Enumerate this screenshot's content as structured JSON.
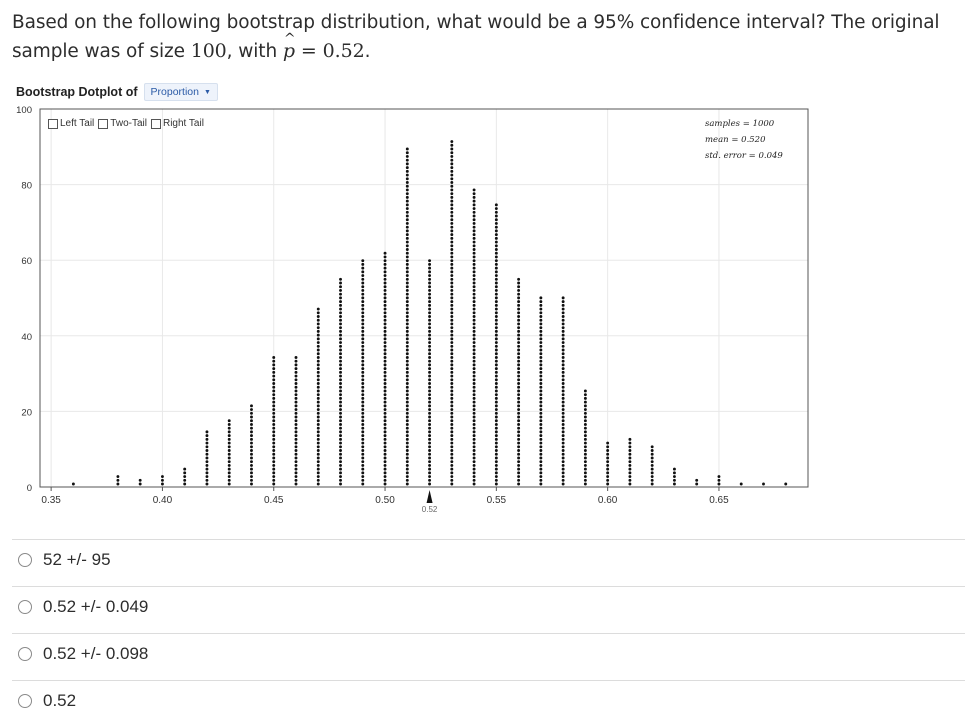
{
  "question": {
    "text_before": "Based on the following bootstrap distribution, what would be a 95% confidence interval? The original sample was of size ",
    "n": "100",
    "text_mid": ", with ",
    "phat_symbol": "p",
    "hat": "^",
    "equals": " = ",
    "phat_value": "0.52",
    "text_end": "."
  },
  "dotplot": {
    "title": "Bootstrap Dotplot of",
    "select_value": "Proportion",
    "tails": [
      "Left Tail",
      "Two-Tail",
      "Right Tail"
    ],
    "stats": [
      "samples = 1000",
      "mean = 0.520",
      "std. error = 0.049"
    ],
    "marker_label": "0.52"
  },
  "chart_data": {
    "type": "scatter",
    "title": "",
    "xlabel": "",
    "ylabel": "",
    "xlim": [
      0.345,
      0.69
    ],
    "ylim": [
      0,
      100
    ],
    "x_ticks": [
      "0.35",
      "0.40",
      "0.45",
      "0.50",
      "0.55",
      "0.60",
      "0.65"
    ],
    "y_ticks": [
      "0",
      "20",
      "40",
      "60",
      "80",
      "100"
    ],
    "grid": true,
    "stacks": [
      {
        "x": 0.36,
        "count": 1
      },
      {
        "x": 0.38,
        "count": 3
      },
      {
        "x": 0.39,
        "count": 2
      },
      {
        "x": 0.4,
        "count": 3
      },
      {
        "x": 0.41,
        "count": 5
      },
      {
        "x": 0.42,
        "count": 15
      },
      {
        "x": 0.43,
        "count": 18
      },
      {
        "x": 0.44,
        "count": 22
      },
      {
        "x": 0.45,
        "count": 35
      },
      {
        "x": 0.46,
        "count": 35
      },
      {
        "x": 0.47,
        "count": 48
      },
      {
        "x": 0.48,
        "count": 56
      },
      {
        "x": 0.49,
        "count": 61
      },
      {
        "x": 0.5,
        "count": 63
      },
      {
        "x": 0.51,
        "count": 91
      },
      {
        "x": 0.52,
        "count": 61
      },
      {
        "x": 0.53,
        "count": 93
      },
      {
        "x": 0.54,
        "count": 80
      },
      {
        "x": 0.55,
        "count": 76
      },
      {
        "x": 0.56,
        "count": 56
      },
      {
        "x": 0.57,
        "count": 51
      },
      {
        "x": 0.58,
        "count": 51
      },
      {
        "x": 0.59,
        "count": 26
      },
      {
        "x": 0.6,
        "count": 12
      },
      {
        "x": 0.61,
        "count": 13
      },
      {
        "x": 0.62,
        "count": 11
      },
      {
        "x": 0.63,
        "count": 5
      },
      {
        "x": 0.64,
        "count": 2
      },
      {
        "x": 0.65,
        "count": 3
      },
      {
        "x": 0.66,
        "count": 1
      },
      {
        "x": 0.67,
        "count": 1
      },
      {
        "x": 0.68,
        "count": 1
      }
    ]
  },
  "options": [
    {
      "label": "52 +/- 95"
    },
    {
      "label": "0.52 +/- 0.049"
    },
    {
      "label": "0.52 +/- 0.098"
    },
    {
      "label": "0.52"
    }
  ]
}
